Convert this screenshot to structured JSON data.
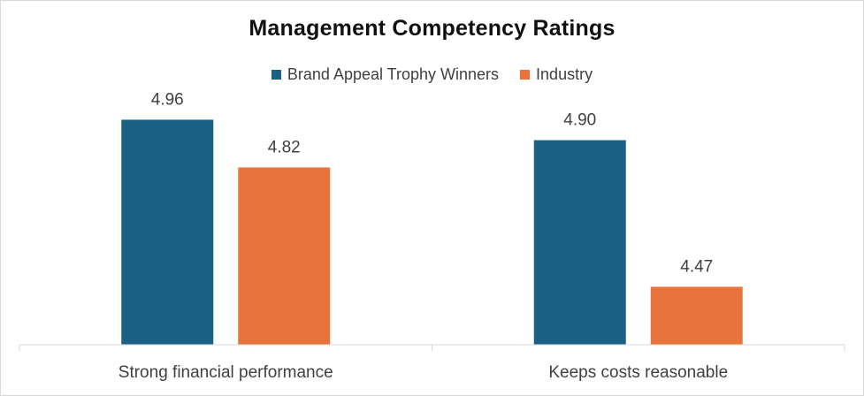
{
  "chart_data": {
    "type": "bar",
    "title": "Management Competency Ratings",
    "categories": [
      "Strong financial performance",
      "Keeps costs reasonable"
    ],
    "series": [
      {
        "name": "Brand Appeal Trophy Winners",
        "values": [
          4.96,
          4.9
        ],
        "labels": [
          "4.96",
          "4.90"
        ],
        "color": "#1b6185"
      },
      {
        "name": "Industry",
        "values": [
          4.82,
          4.47
        ],
        "labels": [
          "4.82",
          "4.47"
        ],
        "color": "#e8743b"
      }
    ],
    "xlabel": "",
    "ylabel": "",
    "ylim": [
      4.3,
      5.0
    ],
    "grid": false,
    "legend_position": "top-center"
  }
}
